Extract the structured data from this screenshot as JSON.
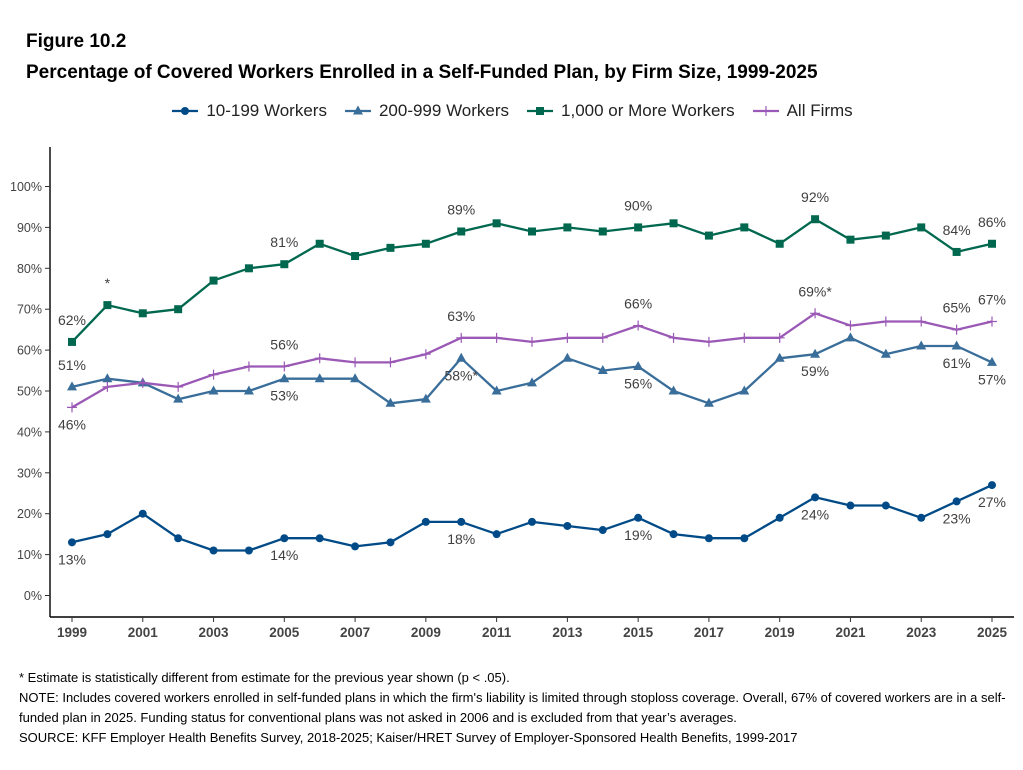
{
  "figure": {
    "number": "Figure 10.2",
    "title": "Percentage of Covered Workers Enrolled in a Self-Funded Plan, by Firm Size, 1999-2025"
  },
  "chart_data": {
    "type": "line",
    "title": "Percentage of Covered Workers Enrolled in a Self-Funded Plan, by Firm Size, 1999-2025",
    "xlabel": "",
    "ylabel": "",
    "x": [
      1999,
      2000,
      2001,
      2002,
      2003,
      2004,
      2005,
      2006,
      2007,
      2008,
      2009,
      2010,
      2011,
      2012,
      2013,
      2014,
      2015,
      2016,
      2017,
      2018,
      2019,
      2020,
      2021,
      2022,
      2023,
      2024,
      2025
    ],
    "x_tick_labels": [
      "1999",
      "2001",
      "2003",
      "2005",
      "2007",
      "2009",
      "2011",
      "2013",
      "2015",
      "2017",
      "2019",
      "2021",
      "2023",
      "2025"
    ],
    "y_tick_labels": [
      "0%",
      "10%",
      "20%",
      "30%",
      "40%",
      "50%",
      "60%",
      "70%",
      "80%",
      "90%",
      "100%"
    ],
    "ylim": [
      -5,
      110
    ],
    "legend_position": "top",
    "series": [
      {
        "name": "10-199 Workers",
        "color": "#004b87",
        "marker": "circle",
        "values": [
          13,
          15,
          20,
          14,
          11,
          11,
          14,
          14,
          12,
          13,
          18,
          18,
          15,
          18,
          17,
          16,
          19,
          15,
          14,
          14,
          19,
          24,
          22,
          22,
          19,
          23,
          27
        ]
      },
      {
        "name": "200-999 Workers",
        "color": "#3a6e9a",
        "marker": "triangle",
        "values": [
          51,
          53,
          52,
          48,
          50,
          50,
          53,
          53,
          53,
          47,
          48,
          58,
          50,
          52,
          58,
          55,
          56,
          50,
          47,
          50,
          58,
          59,
          63,
          59,
          61,
          61,
          57
        ]
      },
      {
        "name": "1,000 or More Workers",
        "color": "#00684f",
        "marker": "square",
        "values": [
          62,
          71,
          69,
          70,
          77,
          80,
          81,
          86,
          83,
          85,
          86,
          89,
          91,
          89,
          90,
          89,
          90,
          91,
          88,
          90,
          86,
          92,
          87,
          88,
          90,
          84,
          86
        ]
      },
      {
        "name": "All Firms",
        "color": "#9b59b6",
        "marker": "plus",
        "values": [
          46,
          51,
          52,
          51,
          54,
          56,
          56,
          58,
          57,
          57,
          59,
          63,
          63,
          62,
          63,
          63,
          66,
          63,
          62,
          63,
          63,
          69,
          66,
          67,
          67,
          65,
          67
        ]
      }
    ],
    "annotations": [
      {
        "series": 0,
        "x": 1999,
        "text": "13%",
        "pos": "below"
      },
      {
        "series": 0,
        "x": 2005,
        "text": "14%",
        "pos": "below"
      },
      {
        "series": 0,
        "x": 2010,
        "text": "18%",
        "pos": "below"
      },
      {
        "series": 0,
        "x": 2015,
        "text": "19%",
        "pos": "below"
      },
      {
        "series": 0,
        "x": 2020,
        "text": "24%",
        "pos": "below"
      },
      {
        "series": 0,
        "x": 2024,
        "text": "23%",
        "pos": "below"
      },
      {
        "series": 0,
        "x": 2025,
        "text": "27%",
        "pos": "below"
      },
      {
        "series": 1,
        "x": 1999,
        "text": "51%",
        "pos": "above"
      },
      {
        "series": 1,
        "x": 2005,
        "text": "53%",
        "pos": "below"
      },
      {
        "series": 1,
        "x": 2010,
        "text": "58%*",
        "pos": "below"
      },
      {
        "series": 1,
        "x": 2015,
        "text": "56%",
        "pos": "below"
      },
      {
        "series": 1,
        "x": 2020,
        "text": "59%",
        "pos": "below"
      },
      {
        "series": 1,
        "x": 2024,
        "text": "61%",
        "pos": "below"
      },
      {
        "series": 1,
        "x": 2025,
        "text": "57%",
        "pos": "below"
      },
      {
        "series": 2,
        "x": 1999,
        "text": "62%",
        "pos": "above"
      },
      {
        "series": 2,
        "x": 2000,
        "text": "*",
        "pos": "above"
      },
      {
        "series": 2,
        "x": 2005,
        "text": "81%",
        "pos": "above"
      },
      {
        "series": 2,
        "x": 2010,
        "text": "89%",
        "pos": "above"
      },
      {
        "series": 2,
        "x": 2015,
        "text": "90%",
        "pos": "above"
      },
      {
        "series": 2,
        "x": 2020,
        "text": "92%",
        "pos": "above"
      },
      {
        "series": 2,
        "x": 2024,
        "text": "84%",
        "pos": "above"
      },
      {
        "series": 2,
        "x": 2025,
        "text": "86%",
        "pos": "above"
      },
      {
        "series": 3,
        "x": 1999,
        "text": "46%",
        "pos": "below"
      },
      {
        "series": 3,
        "x": 2005,
        "text": "56%",
        "pos": "above"
      },
      {
        "series": 3,
        "x": 2010,
        "text": "63%",
        "pos": "above"
      },
      {
        "series": 3,
        "x": 2015,
        "text": "66%",
        "pos": "above"
      },
      {
        "series": 3,
        "x": 2020,
        "text": "69%*",
        "pos": "above"
      },
      {
        "series": 3,
        "x": 2024,
        "text": "65%",
        "pos": "above"
      },
      {
        "series": 3,
        "x": 2025,
        "text": "67%",
        "pos": "above"
      }
    ]
  },
  "notes": {
    "significance": "* Estimate is statistically different from estimate for the previous year shown (p < .05).",
    "note": "NOTE: Includes covered workers enrolled in self-funded plans in which the firm's liability is limited through stoploss coverage. Overall, 67% of covered workers are in a self-funded plan in 2025. Funding status for conventional plans was not asked in 2006 and is excluded from that year’s averages.",
    "source": "SOURCE: KFF Employer Health Benefits Survey, 2018-2025; Kaiser/HRET Survey of Employer-Sponsored Health Benefits, 1999-2017"
  }
}
